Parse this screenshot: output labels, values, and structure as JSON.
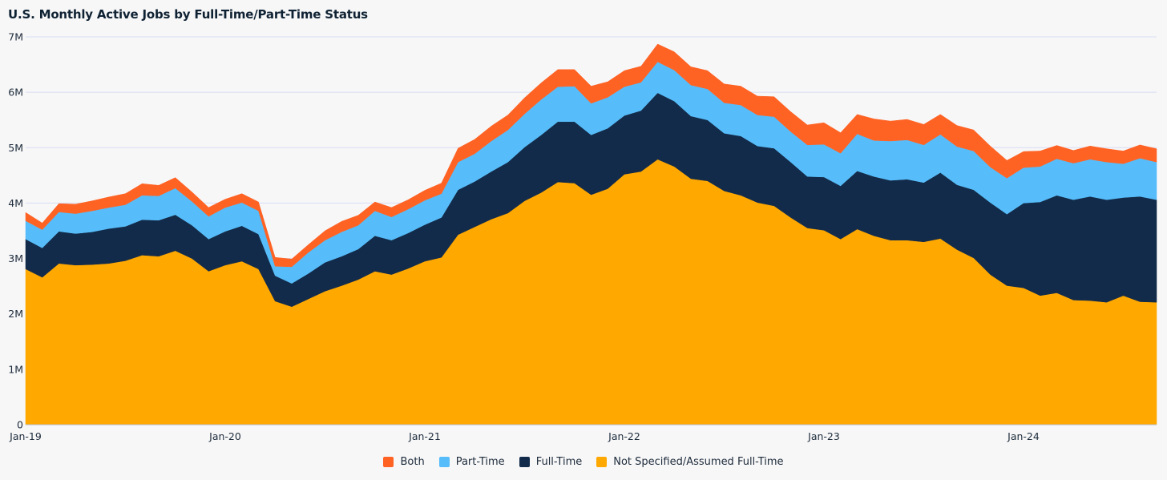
{
  "chart_data": {
    "type": "area",
    "stacked": true,
    "title": "U.S. Monthly Active Jobs by Full-Time/Part-Time Status",
    "xlabel": "",
    "ylabel": "",
    "ylim": [
      0,
      7000000
    ],
    "y_ticks": [
      {
        "value": 0,
        "label": "0"
      },
      {
        "value": 1000000,
        "label": "1M"
      },
      {
        "value": 2000000,
        "label": "2M"
      },
      {
        "value": 3000000,
        "label": "3M"
      },
      {
        "value": 4000000,
        "label": "4M"
      },
      {
        "value": 5000000,
        "label": "5M"
      },
      {
        "value": 6000000,
        "label": "6M"
      },
      {
        "value": 7000000,
        "label": "7M"
      }
    ],
    "x_ticks": [
      {
        "index": 0,
        "label": "Jan-19"
      },
      {
        "index": 12,
        "label": "Jan-20"
      },
      {
        "index": 24,
        "label": "Jan-21"
      },
      {
        "index": 36,
        "label": "Jan-22"
      },
      {
        "index": 48,
        "label": "Jan-23"
      },
      {
        "index": 60,
        "label": "Jan-24"
      }
    ],
    "x": [
      "2019-01",
      "2019-02",
      "2019-03",
      "2019-04",
      "2019-05",
      "2019-06",
      "2019-07",
      "2019-08",
      "2019-09",
      "2019-10",
      "2019-11",
      "2019-12",
      "2020-01",
      "2020-02",
      "2020-03",
      "2020-04",
      "2020-05",
      "2020-06",
      "2020-07",
      "2020-08",
      "2020-09",
      "2020-10",
      "2020-11",
      "2020-12",
      "2021-01",
      "2021-02",
      "2021-03",
      "2021-04",
      "2021-05",
      "2021-06",
      "2021-07",
      "2021-08",
      "2021-09",
      "2021-10",
      "2021-11",
      "2021-12",
      "2022-01",
      "2022-02",
      "2022-03",
      "2022-04",
      "2022-05",
      "2022-06",
      "2022-07",
      "2022-08",
      "2022-09",
      "2022-10",
      "2022-11",
      "2022-12",
      "2023-01",
      "2023-02",
      "2023-03",
      "2023-04",
      "2023-05",
      "2023-06",
      "2023-07",
      "2023-08",
      "2023-09",
      "2023-10",
      "2023-11",
      "2023-12",
      "2024-01",
      "2024-02",
      "2024-03",
      "2024-04",
      "2024-05",
      "2024-06",
      "2024-07",
      "2024-08",
      "2024-09"
    ],
    "series": [
      {
        "name": "Not Specified/Assumed Full-Time",
        "color": "#ffa800",
        "values": [
          2810000,
          2660000,
          2910000,
          2880000,
          2890000,
          2910000,
          2960000,
          3060000,
          3040000,
          3140000,
          3000000,
          2770000,
          2880000,
          2950000,
          2810000,
          2230000,
          2130000,
          2270000,
          2410000,
          2510000,
          2620000,
          2770000,
          2710000,
          2820000,
          2950000,
          3020000,
          3430000,
          3570000,
          3710000,
          3820000,
          4040000,
          4190000,
          4380000,
          4360000,
          4150000,
          4260000,
          4520000,
          4570000,
          4790000,
          4660000,
          4440000,
          4400000,
          4220000,
          4140000,
          4010000,
          3950000,
          3740000,
          3550000,
          3510000,
          3350000,
          3530000,
          3410000,
          3330000,
          3330000,
          3300000,
          3360000,
          3160000,
          3010000,
          2710000,
          2510000,
          2470000,
          2330000,
          2380000,
          2250000,
          2240000,
          2210000,
          2330000,
          2220000,
          2210000
        ]
      },
      {
        "name": "Full-Time",
        "color": "#132b4a",
        "values": [
          540000,
          530000,
          580000,
          570000,
          590000,
          630000,
          620000,
          640000,
          650000,
          650000,
          600000,
          580000,
          610000,
          640000,
          630000,
          460000,
          420000,
          460000,
          520000,
          530000,
          550000,
          640000,
          620000,
          640000,
          660000,
          720000,
          810000,
          820000,
          860000,
          920000,
          970000,
          1040000,
          1090000,
          1110000,
          1080000,
          1090000,
          1060000,
          1100000,
          1200000,
          1180000,
          1130000,
          1100000,
          1040000,
          1070000,
          1020000,
          1040000,
          1000000,
          930000,
          960000,
          960000,
          1050000,
          1070000,
          1080000,
          1100000,
          1070000,
          1190000,
          1170000,
          1230000,
          1300000,
          1290000,
          1530000,
          1690000,
          1760000,
          1810000,
          1880000,
          1850000,
          1770000,
          1900000,
          1850000
        ]
      },
      {
        "name": "Part-Time",
        "color": "#56bdfa",
        "values": [
          330000,
          330000,
          350000,
          360000,
          380000,
          380000,
          390000,
          440000,
          440000,
          480000,
          430000,
          410000,
          430000,
          420000,
          420000,
          170000,
          300000,
          380000,
          400000,
          440000,
          430000,
          450000,
          420000,
          430000,
          440000,
          430000,
          500000,
          500000,
          550000,
          580000,
          600000,
          640000,
          630000,
          640000,
          570000,
          560000,
          520000,
          510000,
          560000,
          560000,
          560000,
          560000,
          550000,
          560000,
          560000,
          570000,
          550000,
          570000,
          590000,
          590000,
          670000,
          650000,
          710000,
          710000,
          680000,
          690000,
          690000,
          700000,
          640000,
          650000,
          640000,
          640000,
          660000,
          660000,
          670000,
          680000,
          610000,
          690000,
          680000
        ]
      },
      {
        "name": "Both",
        "color": "#ff6324",
        "values": [
          150000,
          120000,
          150000,
          170000,
          180000,
          190000,
          200000,
          210000,
          190000,
          190000,
          170000,
          160000,
          150000,
          160000,
          160000,
          160000,
          140000,
          140000,
          170000,
          190000,
          180000,
          160000,
          170000,
          170000,
          180000,
          190000,
          250000,
          260000,
          270000,
          270000,
          290000,
          300000,
          310000,
          300000,
          310000,
          280000,
          290000,
          290000,
          320000,
          330000,
          330000,
          330000,
          340000,
          340000,
          340000,
          360000,
          360000,
          360000,
          390000,
          370000,
          350000,
          390000,
          360000,
          370000,
          370000,
          360000,
          380000,
          380000,
          380000,
          320000,
          290000,
          280000,
          240000,
          230000,
          240000,
          240000,
          230000,
          240000,
          240000
        ]
      }
    ],
    "legend": {
      "placement": "bottom-center",
      "items": [
        {
          "label": "Both",
          "color": "#ff6324"
        },
        {
          "label": "Part-Time",
          "color": "#56bdfa"
        },
        {
          "label": "Full-Time",
          "color": "#132b4a"
        },
        {
          "label": "Not Specified/Assumed Full-Time",
          "color": "#ffa800"
        }
      ]
    },
    "grid": {
      "horizontal": true,
      "color": "#d9dcf2"
    }
  }
}
